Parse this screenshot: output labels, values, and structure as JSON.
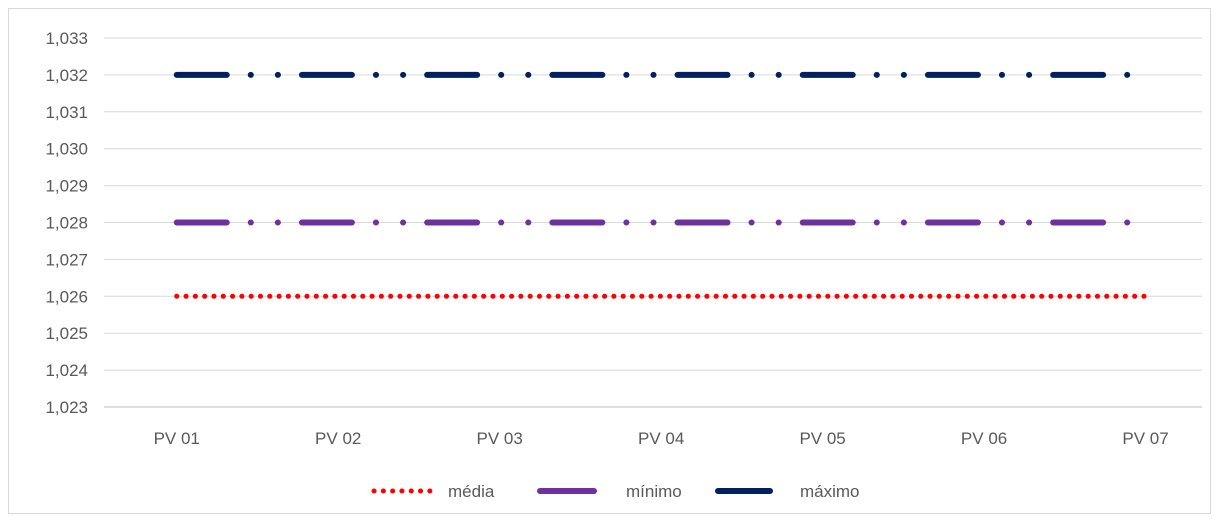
{
  "chart_data": {
    "type": "line",
    "categories": [
      "PV 01",
      "PV 02",
      "PV 03",
      "PV 04",
      "PV 05",
      "PV 06",
      "PV 07"
    ],
    "series": [
      {
        "name": "média",
        "values": [
          1.026,
          1.026,
          1.026,
          1.026,
          1.026,
          1.026,
          1.026
        ],
        "color": "#ff0000",
        "style": "round-dot"
      },
      {
        "name": "mínimo",
        "values": [
          1.028,
          1.028,
          1.028,
          1.028,
          1.028,
          1.028,
          1.028
        ],
        "color": "#7030a0",
        "style": "long-dash-dot-dot"
      },
      {
        "name": "máximo",
        "values": [
          1.032,
          1.032,
          1.032,
          1.032,
          1.032,
          1.032,
          1.032
        ],
        "color": "#002060",
        "style": "long-dash-dot-dot"
      }
    ],
    "y_ticks": [
      "1,023",
      "1,024",
      "1,025",
      "1,026",
      "1,027",
      "1,028",
      "1,029",
      "1,030",
      "1,031",
      "1,032",
      "1,033"
    ],
    "ylim": [
      1.023,
      1.033
    ],
    "grid": true,
    "legend_position": "bottom",
    "title": "",
    "xlabel": "",
    "ylabel": ""
  }
}
